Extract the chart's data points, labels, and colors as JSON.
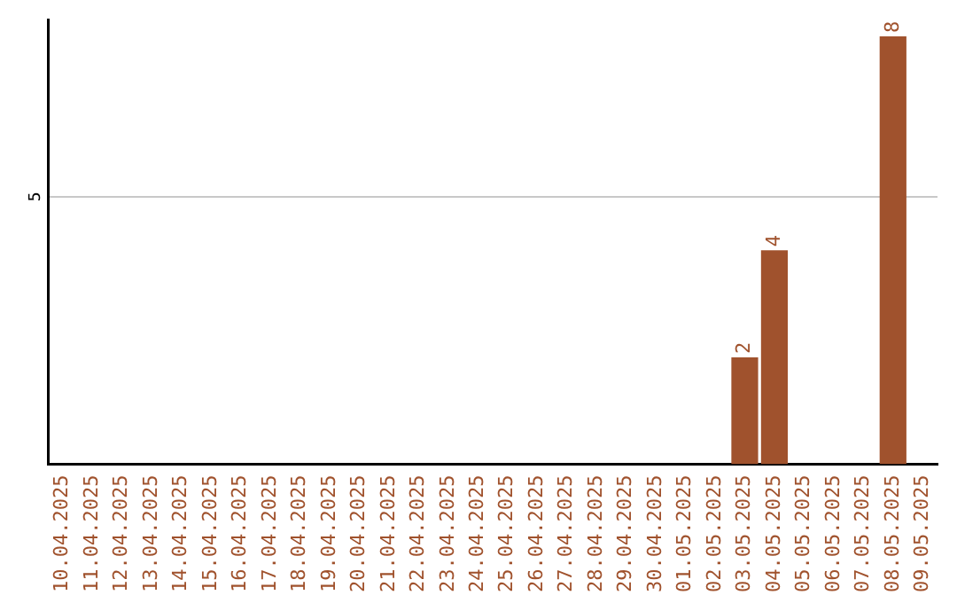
{
  "chart_data": {
    "type": "bar",
    "categories": [
      "10.04.2025",
      "11.04.2025",
      "12.04.2025",
      "13.04.2025",
      "14.04.2025",
      "15.04.2025",
      "16.04.2025",
      "17.04.2025",
      "18.04.2025",
      "19.04.2025",
      "20.04.2025",
      "21.04.2025",
      "22.04.2025",
      "23.04.2025",
      "24.04.2025",
      "25.04.2025",
      "26.04.2025",
      "27.04.2025",
      "28.04.2025",
      "29.04.2025",
      "30.04.2025",
      "01.05.2025",
      "02.05.2025",
      "03.05.2025",
      "04.05.2025",
      "05.05.2025",
      "06.05.2025",
      "07.05.2025",
      "08.05.2025",
      "09.05.2025"
    ],
    "values": [
      null,
      null,
      null,
      null,
      null,
      null,
      null,
      null,
      null,
      null,
      null,
      null,
      null,
      null,
      null,
      null,
      null,
      null,
      null,
      null,
      null,
      null,
      null,
      2,
      4,
      null,
      null,
      null,
      8,
      null
    ],
    "color": "#a0522d",
    "ylim": [
      0,
      8.3
    ],
    "yticks": [
      5
    ],
    "grid": "y",
    "data_labels": true,
    "legend": false
  }
}
